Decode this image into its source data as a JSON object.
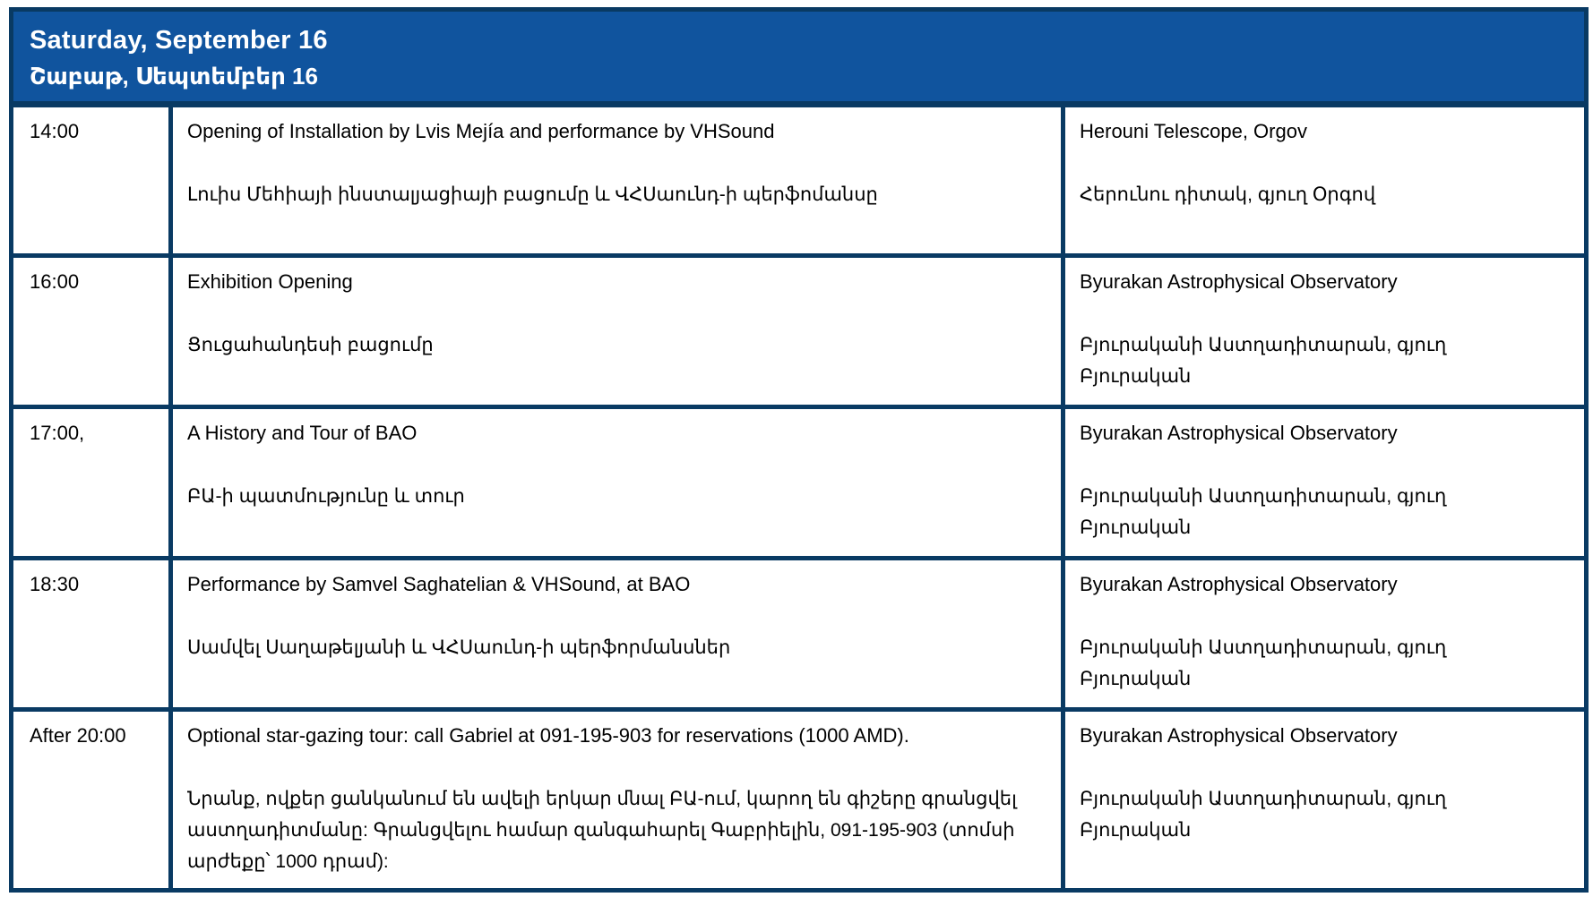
{
  "header": {
    "title_en": "Saturday, September 16",
    "title_hy": "Շաբաթ, Սեպտեմբեր 16"
  },
  "rows": [
    {
      "time": "14:00",
      "event_en": "Opening of Installation by Lvis Mejía and performance by VHSound",
      "event_hy": "Լուիս Մեհիայի ինստալյացիայի բացումը և ՎՀՍաունդ-ի պերֆոմանսը",
      "location_en": "Herouni Telescope, Orgov",
      "location_hy": "Հերունու դիտակ, գյուղ Օրգով"
    },
    {
      "time": "16:00",
      "event_en": "Exhibition Opening",
      "event_hy": "Ցուցահանդեսի բացումը",
      "location_en": "Byurakan Astrophysical Observatory",
      "location_hy": "Բյուրականի Աստղադիտարան, գյուղ Բյուրական"
    },
    {
      "time": "17:00,",
      "event_en": "A History and Tour of BAO",
      "event_hy": "ԲԱ-ի պատմությունը և տուր",
      "location_en": "Byurakan Astrophysical Observatory",
      "location_hy": "Բյուրականի Աստղադիտարան, գյուղ Բյուրական"
    },
    {
      "time": "18:30",
      "event_en": "Performance by Samvel Saghatelian & VHSound, at BAO",
      "event_hy": "Սամվել Սաղաթելյանի և ՎՀՍաունդ-ի պերֆորմանսներ",
      "location_en": "Byurakan Astrophysical Observatory",
      "location_hy": "Բյուրականի Աստղադիտարան, գյուղ Բյուրական"
    },
    {
      "time": "After 20:00",
      "event_en": "Optional star-gazing tour: call Gabriel at 091-195-903 for reservations (1000 AMD).",
      "event_hy": "Նրանք, ովքեր ցանկանում են ավելի երկար մնալ ԲԱ-ում, կարող են գիշերը գրանցվել աստղադիտմանը: Գրանցվելու համար զանգահարել Գաբրիելին, 091-195-903 (տոմսի արժեքը՝ 1000 դրամ):",
      "location_en": "Byurakan Astrophysical Observatory",
      "location_hy": "Բյուրականի Աստղադիտարան, գյուղ Բյուրական"
    }
  ],
  "colors": {
    "header_bg": "#10549E",
    "border": "#093A63",
    "header_text": "#FFFFFF",
    "text": "#000000"
  }
}
